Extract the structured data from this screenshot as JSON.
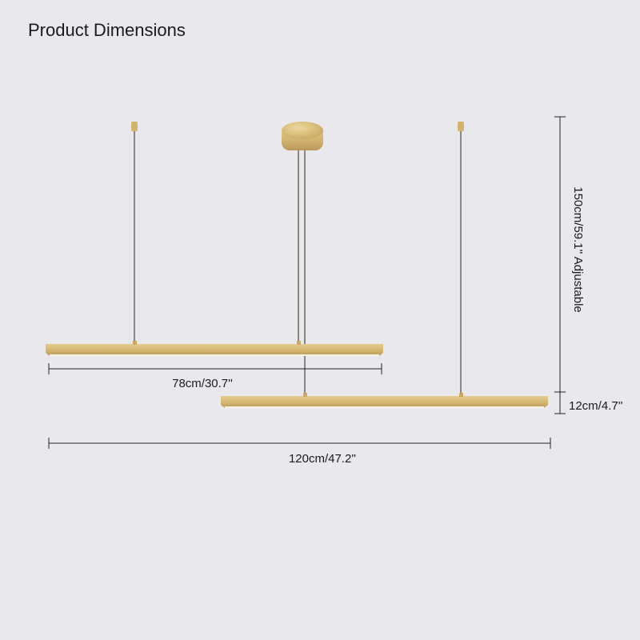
{
  "title": "Product Dimensions",
  "dimensions": {
    "upper_bar_length": "78cm/30.7''",
    "total_length": "120cm/47.2''",
    "height": "150cm/59.1'' Adjustable",
    "vertical_offset": "12cm/4.7''"
  }
}
